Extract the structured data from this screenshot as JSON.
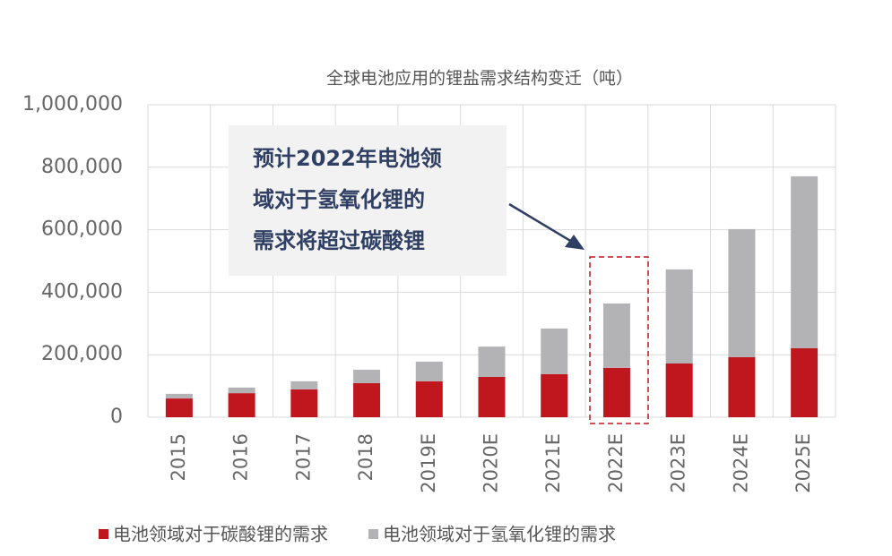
{
  "chart_data": {
    "type": "stacked-bar",
    "title": "全球电池应用的锂盐需求结构变迁（吨）",
    "categories": [
      "2015",
      "2016",
      "2017",
      "2018",
      "2019E",
      "2020E",
      "2021E",
      "2022E",
      "2023E",
      "2024E",
      "2025E"
    ],
    "series": [
      {
        "name": "电池领域对于碳酸锂的需求",
        "color": "#c0161e",
        "values": [
          60000,
          77000,
          89000,
          109000,
          115000,
          129000,
          138000,
          158000,
          172000,
          192000,
          221000
        ]
      },
      {
        "name": "电池领域对于氢氧化锂的需求",
        "color": "#b3b3b6",
        "values": [
          15000,
          18000,
          26000,
          43000,
          63000,
          97000,
          146000,
          206000,
          301000,
          410000,
          550000
        ]
      }
    ],
    "ylim": [
      0,
      1000000
    ],
    "yticks": [
      0,
      {
        "value": 200000,
        "label": "200,000"
      },
      {
        "value": 400000,
        "label": "400,000"
      },
      {
        "value": 600000,
        "label": "600,000"
      },
      {
        "value": 800000,
        "label": "800,000"
      },
      {
        "value": 1000000,
        "label": "1,000,000"
      }
    ],
    "grid": true,
    "annotation": [
      "预计2022年电池领",
      "域对于氢氧化锂的",
      "需求将超过碳酸锂"
    ]
  }
}
